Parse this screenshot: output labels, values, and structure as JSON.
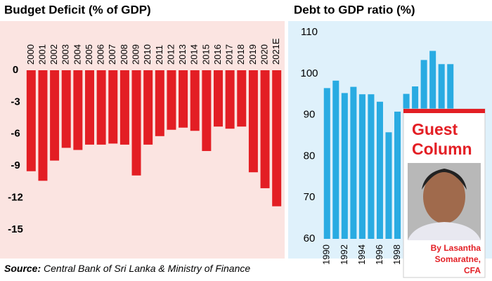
{
  "chart_data": [
    {
      "type": "bar",
      "title": "Budget Deficit (% of GDP)",
      "categories": [
        "2000",
        "2001",
        "2002",
        "2003",
        "2004",
        "2005",
        "2006",
        "2007",
        "2008",
        "2009",
        "2010",
        "2011",
        "2012",
        "2013",
        "2014",
        "2015",
        "2016",
        "2017",
        "2018",
        "2019",
        "2020",
        "2021E"
      ],
      "values": [
        -9.5,
        -10.4,
        -8.5,
        -7.3,
        -7.5,
        -7.0,
        -7.0,
        -6.9,
        -7.0,
        -9.9,
        -7.0,
        -6.2,
        -5.6,
        -5.4,
        -5.7,
        -7.6,
        -5.3,
        -5.5,
        -5.3,
        -9.6,
        -11.1,
        -12.8
      ],
      "color": "#e31e24",
      "ylim": [
        -15.6,
        0
      ],
      "yticks": [
        0,
        -3,
        -6,
        -9,
        -12,
        -15
      ]
    },
    {
      "type": "bar",
      "title": "Debt to GDP ratio (%)",
      "categories": [
        "1990",
        null,
        "1992",
        null,
        "1994",
        null,
        "1996",
        null,
        "1998",
        null,
        null,
        null,
        null,
        null,
        null
      ],
      "values": [
        96.5,
        98.3,
        95.3,
        96.8,
        95,
        95,
        93.2,
        85.8,
        90.8,
        95.1,
        96.9,
        103.3,
        105.5,
        102.3,
        102.3
      ],
      "color": "#29abe2",
      "ylim": [
        60,
        110
      ],
      "yticks": [
        60,
        70,
        80,
        90,
        100,
        110
      ]
    }
  ],
  "guest": {
    "title": [
      "Guest",
      "Column"
    ],
    "byline": [
      "By Lasantha",
      "Somaratne,",
      "CFA"
    ]
  },
  "source": {
    "label": "Source:",
    "text": "Central Bank of Sri Lanka & Ministry of Finance"
  }
}
